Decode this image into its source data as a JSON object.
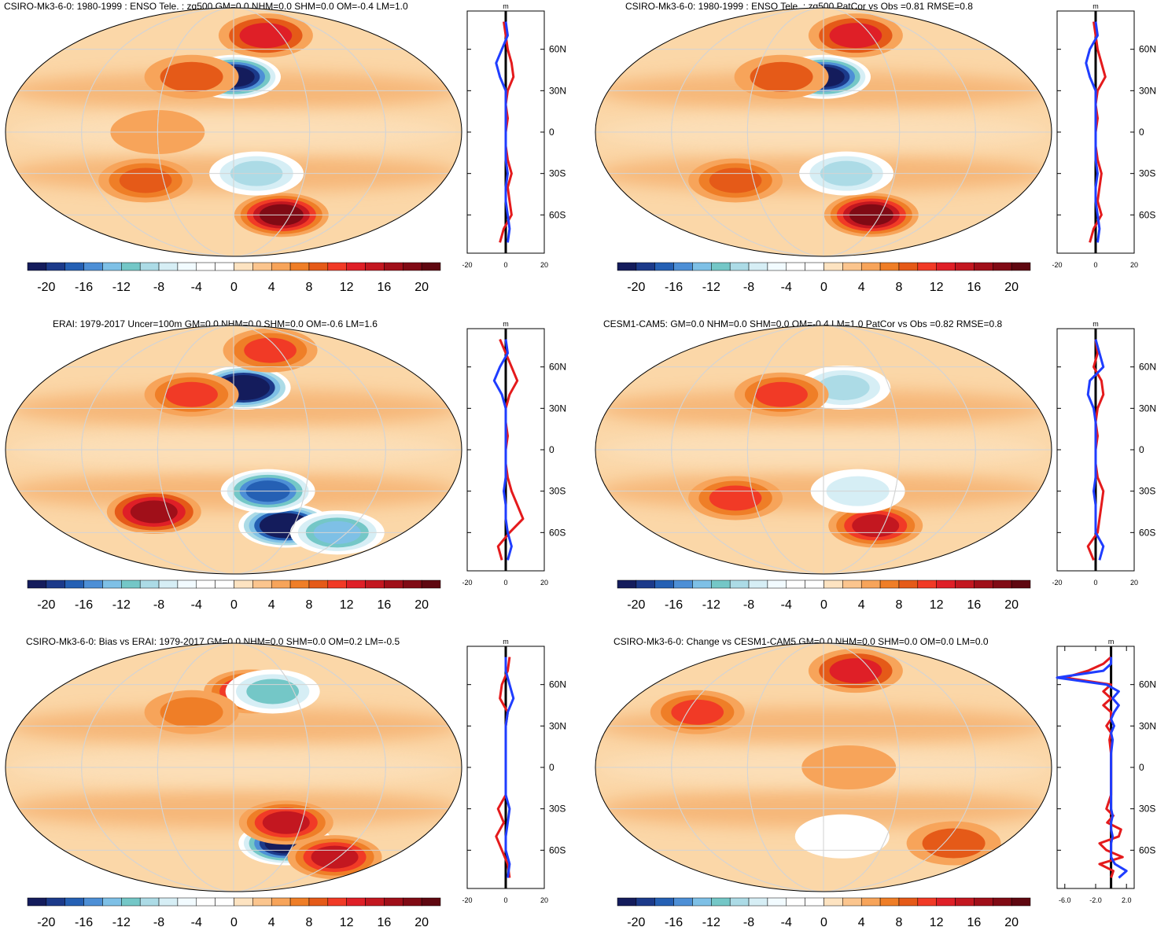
{
  "chart_data": [
    {
      "type": "map",
      "title": "CSIRO-Mk3-6-0: 1980-1999 : ENSO Tele. : zg500 GM=0.0 NHM=0.0 SHM=0.0 OM=-0.4 LM=1.0",
      "field": "zg500 ENSO teleconnection",
      "units": "m",
      "anomalies": [
        {
          "lat": 40,
          "lon": 180,
          "value": -22
        },
        {
          "lat": 70,
          "lon": 230,
          "value": 12
        },
        {
          "lat": -60,
          "lon": 240,
          "value": 18
        },
        {
          "lat": -30,
          "lon": 200,
          "value": -10
        },
        {
          "lat": 40,
          "lon": 140,
          "value": 8
        },
        {
          "lat": -35,
          "lon": 100,
          "value": 9
        },
        {
          "lat": 0,
          "lon": 120,
          "value": 4
        }
      ],
      "colorbar": {
        "levels": [
          -20,
          -18,
          -16,
          -14,
          -12,
          -10,
          -8,
          -6,
          -4,
          -2,
          0,
          2,
          4,
          6,
          8,
          10,
          12,
          14,
          16,
          18,
          20
        ],
        "labels": [
          "-20",
          "-16",
          "-12",
          "-8",
          "-4",
          "0",
          "4",
          "8",
          "12",
          "16",
          "20"
        ]
      },
      "zonal_profile": {
        "units": "m",
        "xlim": [
          -20,
          20
        ],
        "xticks": [
          "-20",
          "0",
          "20"
        ],
        "yticks": [
          "60N",
          "30N",
          "0",
          "30S",
          "60S"
        ],
        "series": [
          {
            "name": "model",
            "color": "#e41a1c",
            "lat": [
              80,
              70,
              60,
              50,
              40,
              30,
              20,
              10,
              0,
              -10,
              -20,
              -30,
              -40,
              -50,
              -60,
              -70,
              -80
            ],
            "value": [
              -1,
              0,
              1,
              3,
              4,
              1,
              0,
              1,
              0,
              0,
              1,
              3,
              1,
              2,
              3,
              -1,
              -3
            ]
          },
          {
            "name": "obs",
            "color": "#1f3dff",
            "lat": [
              80,
              70,
              60,
              50,
              40,
              30,
              20,
              10,
              0,
              -10,
              -20,
              -30,
              -40,
              -50,
              -60,
              -70,
              -80
            ],
            "value": [
              0,
              1,
              -2,
              -5,
              -3,
              0,
              0,
              0,
              0,
              0,
              0,
              1,
              0,
              0,
              1,
              2,
              1
            ]
          }
        ]
      }
    },
    {
      "type": "map",
      "title": "CSIRO-Mk3-6-0: 1980-1999 : ENSO Tele. : zg500 PatCor vs Obs =0.81 RMSE=0.8",
      "field": "zg500 ENSO teleconnection",
      "units": "m",
      "anomalies": [
        {
          "lat": 40,
          "lon": 180,
          "value": -22
        },
        {
          "lat": 70,
          "lon": 230,
          "value": 12
        },
        {
          "lat": -60,
          "lon": 240,
          "value": 18
        },
        {
          "lat": -30,
          "lon": 200,
          "value": -10
        },
        {
          "lat": 40,
          "lon": 140,
          "value": 8
        },
        {
          "lat": -35,
          "lon": 100,
          "value": 9
        }
      ],
      "colorbar": {
        "levels": [
          -20,
          -18,
          -16,
          -14,
          -12,
          -10,
          -8,
          -6,
          -4,
          -2,
          0,
          2,
          4,
          6,
          8,
          10,
          12,
          14,
          16,
          18,
          20
        ],
        "labels": [
          "-20",
          "-16",
          "-12",
          "-8",
          "-4",
          "0",
          "4",
          "8",
          "12",
          "16",
          "20"
        ]
      },
      "zonal_profile": {
        "units": "m",
        "xlim": [
          -20,
          20
        ],
        "xticks": [
          "-20",
          "0",
          "20"
        ],
        "yticks": [
          "60N",
          "30N",
          "0",
          "30S",
          "60S"
        ],
        "series": [
          {
            "name": "model",
            "color": "#e41a1c",
            "lat": [
              80,
              70,
              60,
              50,
              40,
              30,
              20,
              10,
              0,
              -10,
              -20,
              -30,
              -40,
              -50,
              -60,
              -70,
              -80
            ],
            "value": [
              -1,
              0,
              1,
              3,
              5,
              1,
              0,
              1,
              0,
              0,
              1,
              3,
              2,
              1,
              3,
              -1,
              -3
            ]
          },
          {
            "name": "obs",
            "color": "#1f3dff",
            "lat": [
              80,
              70,
              60,
              50,
              40,
              30,
              20,
              10,
              0,
              -10,
              -20,
              -30,
              -40,
              -50,
              -60,
              -70,
              -80
            ],
            "value": [
              0,
              1,
              -3,
              -5,
              -3,
              0,
              0,
              0,
              0,
              0,
              0,
              1,
              0,
              0,
              1,
              2,
              1
            ]
          }
        ]
      }
    },
    {
      "type": "map",
      "title": "ERAI: 1979-2017 Uncer=100m GM=0.0 NHM=0.0 SHM=0.0 OM=-0.6 LM=1.6",
      "field": "zg500 ENSO teleconnection",
      "units": "m",
      "anomalies": [
        {
          "lat": 45,
          "lon": 190,
          "value": -28
        },
        {
          "lat": 72,
          "lon": 240,
          "value": 10
        },
        {
          "lat": -55,
          "lon": 240,
          "value": -26
        },
        {
          "lat": -30,
          "lon": 210,
          "value": -18
        },
        {
          "lat": 40,
          "lon": 140,
          "value": 10
        },
        {
          "lat": -45,
          "lon": 100,
          "value": 16
        },
        {
          "lat": -60,
          "lon": 310,
          "value": -14
        }
      ],
      "colorbar": {
        "levels": [
          -20,
          -18,
          -16,
          -14,
          -12,
          -10,
          -8,
          -6,
          -4,
          -2,
          0,
          2,
          4,
          6,
          8,
          10,
          12,
          14,
          16,
          18,
          20
        ],
        "labels": [
          "-20",
          "-16",
          "-12",
          "-8",
          "-4",
          "0",
          "4",
          "8",
          "12",
          "16",
          "20"
        ]
      },
      "zonal_profile": {
        "units": "m",
        "xlim": [
          -20,
          20
        ],
        "xticks": [
          "-20",
          "0",
          "20"
        ],
        "yticks": [
          "60N",
          "30N",
          "0",
          "30S",
          "60S"
        ],
        "series": [
          {
            "name": "model",
            "color": "#e41a1c",
            "lat": [
              80,
              70,
              60,
              50,
              40,
              30,
              20,
              10,
              0,
              -10,
              -20,
              -30,
              -40,
              -50,
              -60,
              -70,
              -80
            ],
            "value": [
              -3,
              0,
              3,
              6,
              2,
              0,
              0,
              1,
              0,
              0,
              1,
              3,
              6,
              9,
              2,
              -4,
              -2
            ]
          },
          {
            "name": "obs",
            "color": "#1f3dff",
            "lat": [
              80,
              70,
              60,
              50,
              40,
              30,
              20,
              10,
              0,
              -10,
              -20,
              -30,
              -40,
              -50,
              -60,
              -70,
              -80
            ],
            "value": [
              0,
              1,
              -3,
              -6,
              -2,
              0,
              0,
              0,
              0,
              0,
              0,
              -1,
              0,
              0,
              1,
              3,
              1
            ]
          }
        ]
      }
    },
    {
      "type": "map",
      "title": "CESM1-CAM5: GM=0.0 NHM=0.0 SHM=0.0 OM=-0.4 LM=1.0 PatCor vs Obs =0.82 RMSE=0.8",
      "field": "zg500 ENSO teleconnection",
      "units": "m",
      "anomalies": [
        {
          "lat": 45,
          "lon": 200,
          "value": -10
        },
        {
          "lat": 40,
          "lon": 140,
          "value": 10
        },
        {
          "lat": -55,
          "lon": 240,
          "value": 14
        },
        {
          "lat": -30,
          "lon": 210,
          "value": -8
        },
        {
          "lat": -35,
          "lon": 100,
          "value": 10
        }
      ],
      "colorbar": {
        "levels": [
          -20,
          -18,
          -16,
          -14,
          -12,
          -10,
          -8,
          -6,
          -4,
          -2,
          0,
          2,
          4,
          6,
          8,
          10,
          12,
          14,
          16,
          18,
          20
        ],
        "labels": [
          "-20",
          "-16",
          "-12",
          "-8",
          "-4",
          "0",
          "4",
          "8",
          "12",
          "16",
          "20"
        ]
      },
      "zonal_profile": {
        "units": "m",
        "xlim": [
          -20,
          20
        ],
        "xticks": [
          "-20",
          "0",
          "20"
        ],
        "yticks": [
          "60N",
          "30N",
          "0",
          "30S",
          "60S"
        ],
        "series": [
          {
            "name": "model",
            "color": "#e41a1c",
            "lat": [
              80,
              70,
              60,
              50,
              40,
              30,
              20,
              10,
              0,
              -10,
              -20,
              -30,
              -40,
              -50,
              -60,
              -70,
              -80
            ],
            "value": [
              0,
              1,
              -1,
              3,
              4,
              1,
              0,
              1,
              0,
              0,
              1,
              4,
              3,
              2,
              1,
              -4,
              -1
            ]
          },
          {
            "name": "obs",
            "color": "#1f3dff",
            "lat": [
              80,
              70,
              60,
              50,
              40,
              30,
              20,
              10,
              0,
              -10,
              -20,
              -30,
              -40,
              -50,
              -60,
              -70,
              -80
            ],
            "value": [
              0,
              2,
              4,
              -3,
              -4,
              -1,
              0,
              0,
              0,
              0,
              0,
              -1,
              0,
              0,
              0,
              4,
              2
            ]
          }
        ]
      }
    },
    {
      "type": "map",
      "title": "CSIRO-Mk3-6-0: Bias vs ERAI: 1979-2017 GM=0.0 NHM=0.0 SHM=0.0 OM=0.2 LM=-0.5",
      "field": "zg500 ENSO teleconnection bias",
      "units": "m",
      "anomalies": [
        {
          "lat": 55,
          "lon": 200,
          "value": 14
        },
        {
          "lat": 55,
          "lon": 225,
          "value": -12
        },
        {
          "lat": -55,
          "lon": 240,
          "value": -22
        },
        {
          "lat": -40,
          "lon": 230,
          "value": 14
        },
        {
          "lat": -65,
          "lon": 320,
          "value": 14
        },
        {
          "lat": 40,
          "lon": 140,
          "value": 6
        }
      ],
      "colorbar": {
        "levels": [
          -20,
          -18,
          -16,
          -14,
          -12,
          -10,
          -8,
          -6,
          -4,
          -2,
          0,
          2,
          4,
          6,
          8,
          10,
          12,
          14,
          16,
          18,
          20
        ],
        "labels": [
          "-20",
          "-16",
          "-12",
          "-8",
          "-4",
          "0",
          "4",
          "8",
          "12",
          "16",
          "20"
        ]
      },
      "zonal_profile": {
        "units": "m",
        "xlim": [
          -20,
          20
        ],
        "xticks": [
          "-20",
          "0",
          "20"
        ],
        "yticks": [
          "60N",
          "30N",
          "0",
          "30S",
          "60S"
        ],
        "series": [
          {
            "name": "model",
            "color": "#e41a1c",
            "lat": [
              80,
              70,
              60,
              50,
              40,
              30,
              20,
              10,
              0,
              -10,
              -20,
              -30,
              -40,
              -50,
              -60,
              -70,
              -80
            ],
            "value": [
              2,
              1,
              -2,
              -3,
              1,
              0,
              0,
              0,
              0,
              0,
              0,
              -4,
              -1,
              -5,
              -2,
              1,
              2
            ]
          },
          {
            "name": "obs",
            "color": "#1f3dff",
            "lat": [
              80,
              70,
              60,
              50,
              40,
              30,
              20,
              10,
              0,
              -10,
              -20,
              -30,
              -40,
              -50,
              -60,
              -70,
              -80
            ],
            "value": [
              0,
              0,
              2,
              4,
              1,
              0,
              0,
              0,
              0,
              0,
              0,
              2,
              1,
              0,
              0,
              2,
              1
            ]
          }
        ]
      }
    },
    {
      "type": "map",
      "title": "CSIRO-Mk3-6-0: Change vs CESM1-CAM5 GM=0.0 NHM=0.0 SHM=0.0 OM=0.0 LM=0.0",
      "field": "zg500 ENSO teleconnection change",
      "units": "m",
      "anomalies": [
        {
          "lat": 70,
          "lon": 230,
          "value": 12
        },
        {
          "lat": 40,
          "lon": 60,
          "value": 10
        },
        {
          "lat": -55,
          "lon": 330,
          "value": 8
        },
        {
          "lat": -50,
          "lon": 200,
          "value": -4
        },
        {
          "lat": 0,
          "lon": 200,
          "value": 4
        }
      ],
      "colorbar": {
        "levels": [
          -20,
          -18,
          -16,
          -14,
          -12,
          -10,
          -8,
          -6,
          -4,
          -2,
          0,
          2,
          4,
          6,
          8,
          10,
          12,
          14,
          16,
          18,
          20
        ],
        "labels": [
          "-20",
          "-16",
          "-12",
          "-8",
          "-4",
          "0",
          "4",
          "8",
          "12",
          "16",
          "20"
        ]
      },
      "zonal_profile": {
        "units": "m",
        "xlim": [
          -7,
          3
        ],
        "xticks": [
          "-6.0",
          "-2.0",
          "2.0"
        ],
        "yticks": [
          "60N",
          "30N",
          "0",
          "30S",
          "60S"
        ],
        "series": [
          {
            "name": "model",
            "color": "#e41a1c",
            "lat": [
              80,
              75,
              70,
              65,
              60,
              55,
              50,
              45,
              40,
              35,
              30,
              25,
              20,
              10,
              0,
              -10,
              -20,
              -30,
              -35,
              -40,
              -45,
              -50,
              -55,
              -60,
              -65,
              -70,
              -75,
              -80
            ],
            "value": [
              0,
              -1,
              -3,
              -6,
              0,
              -1,
              0,
              -1,
              0,
              0,
              -0.6,
              0,
              -0.2,
              0,
              0,
              0,
              0,
              -0.6,
              0.3,
              -0.5,
              1.3,
              1,
              -1.5,
              -0.6,
              1.5,
              -1.5,
              0.3,
              0
            ]
          },
          {
            "name": "obs",
            "color": "#1f3dff",
            "lat": [
              80,
              75,
              70,
              65,
              60,
              55,
              50,
              45,
              40,
              35,
              30,
              25,
              20,
              10,
              0,
              -10,
              -20,
              -30,
              -35,
              -40,
              -45,
              -50,
              -55,
              -60,
              -65,
              -70,
              -75,
              -80
            ],
            "value": [
              0,
              0,
              -1,
              -7,
              -0.6,
              1,
              0.2,
              1,
              0.4,
              0,
              0.4,
              0,
              0.2,
              0,
              0,
              0,
              0,
              0,
              0.2,
              0,
              0,
              0.2,
              0,
              0,
              0,
              0.5,
              2,
              1
            ]
          }
        ]
      }
    }
  ]
}
